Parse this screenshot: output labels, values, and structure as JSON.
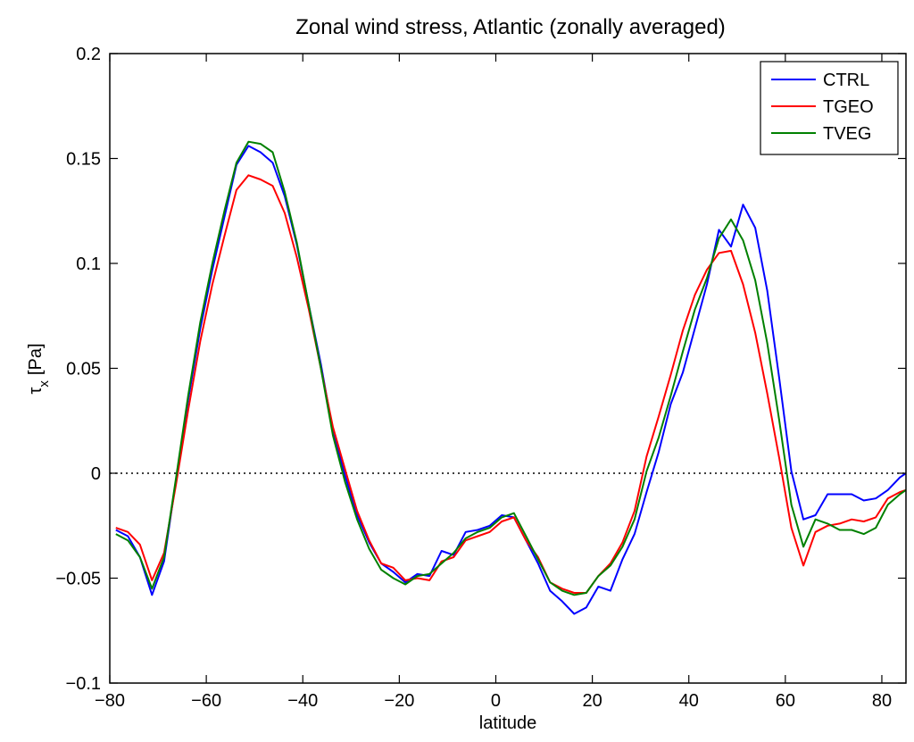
{
  "chart_data": {
    "type": "line",
    "title": "Zonal wind stress, Atlantic (zonally averaged)",
    "xlabel": "latitude",
    "ylabel_main": "τ",
    "ylabel_sub": "x",
    "ylabel_unit": "[Pa]",
    "xlim": [
      -80,
      85
    ],
    "ylim": [
      -0.1,
      0.2
    ],
    "x_ticks": [
      -80,
      -60,
      -40,
      -20,
      0,
      20,
      40,
      60,
      80
    ],
    "x_tick_labels": [
      "−80",
      "−60",
      "−40",
      "−20",
      "0",
      "20",
      "40",
      "60",
      "80"
    ],
    "y_ticks": [
      -0.1,
      -0.05,
      0,
      0.05,
      0.1,
      0.15,
      0.2
    ],
    "y_tick_labels": [
      "−0.1",
      "−0.05",
      "0",
      "0.05",
      "0.1",
      "0.15",
      "0.2"
    ],
    "grid": false,
    "legend_position": "top-right",
    "zero_line": {
      "y": 0,
      "style": "dotted",
      "color": "#000000"
    },
    "series": [
      {
        "name": "CTRL",
        "color": "#0000ff",
        "points": [
          [
            -78.75,
            -0.027
          ],
          [
            -76.25,
            -0.03
          ],
          [
            -73.75,
            -0.04
          ],
          [
            -71.25,
            -0.058
          ],
          [
            -68.75,
            -0.042
          ],
          [
            -66.25,
            -0.003
          ],
          [
            -63.75,
            0.035
          ],
          [
            -61.25,
            0.069
          ],
          [
            -58.75,
            0.097
          ],
          [
            -56.25,
            0.122
          ],
          [
            -53.75,
            0.147
          ],
          [
            -51.25,
            0.156
          ],
          [
            -48.75,
            0.153
          ],
          [
            -46.25,
            0.148
          ],
          [
            -43.75,
            0.132
          ],
          [
            -41.25,
            0.109
          ],
          [
            -38.75,
            0.08
          ],
          [
            -36.25,
            0.052
          ],
          [
            -33.75,
            0.02
          ],
          [
            -31.25,
            -0.001
          ],
          [
            -28.75,
            -0.02
          ],
          [
            -26.25,
            -0.033
          ],
          [
            -23.75,
            -0.043
          ],
          [
            -21.25,
            -0.047
          ],
          [
            -18.75,
            -0.052
          ],
          [
            -16.25,
            -0.048
          ],
          [
            -13.75,
            -0.049
          ],
          [
            -11.25,
            -0.037
          ],
          [
            -8.75,
            -0.039
          ],
          [
            -6.25,
            -0.028
          ],
          [
            -3.75,
            -0.027
          ],
          [
            -1.25,
            -0.025
          ],
          [
            1.25,
            -0.02
          ],
          [
            3.75,
            -0.021
          ],
          [
            6.25,
            -0.032
          ],
          [
            8.75,
            -0.043
          ],
          [
            11.25,
            -0.056
          ],
          [
            13.75,
            -0.061
          ],
          [
            16.25,
            -0.067
          ],
          [
            18.75,
            -0.064
          ],
          [
            21.25,
            -0.054
          ],
          [
            23.75,
            -0.056
          ],
          [
            26.25,
            -0.041
          ],
          [
            28.75,
            -0.029
          ],
          [
            31.25,
            -0.009
          ],
          [
            33.75,
            0.01
          ],
          [
            36.25,
            0.033
          ],
          [
            38.75,
            0.048
          ],
          [
            41.25,
            0.069
          ],
          [
            43.75,
            0.09
          ],
          [
            46.25,
            0.116
          ],
          [
            48.75,
            0.108
          ],
          [
            51.25,
            0.128
          ],
          [
            53.75,
            0.117
          ],
          [
            56.25,
            0.087
          ],
          [
            58.75,
            0.045
          ],
          [
            61.25,
            0.001
          ],
          [
            63.75,
            -0.022
          ],
          [
            66.25,
            -0.02
          ],
          [
            68.75,
            -0.01
          ],
          [
            71.25,
            -0.01
          ],
          [
            73.75,
            -0.01
          ],
          [
            76.25,
            -0.013
          ],
          [
            78.75,
            -0.012
          ],
          [
            81.25,
            -0.008
          ],
          [
            83.75,
            -0.002
          ],
          [
            85.0,
            0.0
          ]
        ]
      },
      {
        "name": "TGEO",
        "color": "#ff0000",
        "points": [
          [
            -78.75,
            -0.026
          ],
          [
            -76.25,
            -0.028
          ],
          [
            -73.75,
            -0.034
          ],
          [
            -71.25,
            -0.051
          ],
          [
            -68.75,
            -0.038
          ],
          [
            -66.25,
            -0.005
          ],
          [
            -63.75,
            0.03
          ],
          [
            -61.25,
            0.063
          ],
          [
            -58.75,
            0.09
          ],
          [
            -56.25,
            0.113
          ],
          [
            -53.75,
            0.135
          ],
          [
            -51.25,
            0.142
          ],
          [
            -48.75,
            0.14
          ],
          [
            -46.25,
            0.137
          ],
          [
            -43.75,
            0.124
          ],
          [
            -41.25,
            0.103
          ],
          [
            -38.75,
            0.078
          ],
          [
            -36.25,
            0.05
          ],
          [
            -33.75,
            0.022
          ],
          [
            -31.25,
            0.002
          ],
          [
            -28.75,
            -0.018
          ],
          [
            -26.25,
            -0.032
          ],
          [
            -23.75,
            -0.043
          ],
          [
            -21.25,
            -0.045
          ],
          [
            -18.75,
            -0.051
          ],
          [
            -16.25,
            -0.05
          ],
          [
            -13.75,
            -0.051
          ],
          [
            -11.25,
            -0.042
          ],
          [
            -8.75,
            -0.04
          ],
          [
            -6.25,
            -0.032
          ],
          [
            -3.75,
            -0.03
          ],
          [
            -1.25,
            -0.028
          ],
          [
            1.25,
            -0.023
          ],
          [
            3.75,
            -0.021
          ],
          [
            6.25,
            -0.032
          ],
          [
            8.75,
            -0.04
          ],
          [
            11.25,
            -0.052
          ],
          [
            13.75,
            -0.055
          ],
          [
            16.25,
            -0.057
          ],
          [
            18.75,
            -0.057
          ],
          [
            21.25,
            -0.049
          ],
          [
            23.75,
            -0.043
          ],
          [
            26.25,
            -0.033
          ],
          [
            28.75,
            -0.018
          ],
          [
            31.25,
            0.008
          ],
          [
            33.75,
            0.027
          ],
          [
            36.25,
            0.047
          ],
          [
            38.75,
            0.068
          ],
          [
            41.25,
            0.085
          ],
          [
            43.75,
            0.097
          ],
          [
            46.25,
            0.105
          ],
          [
            48.75,
            0.106
          ],
          [
            51.25,
            0.09
          ],
          [
            53.75,
            0.067
          ],
          [
            56.25,
            0.038
          ],
          [
            58.75,
            0.007
          ],
          [
            61.25,
            -0.026
          ],
          [
            63.75,
            -0.044
          ],
          [
            66.25,
            -0.028
          ],
          [
            68.75,
            -0.025
          ],
          [
            71.25,
            -0.024
          ],
          [
            73.75,
            -0.022
          ],
          [
            76.25,
            -0.023
          ],
          [
            78.75,
            -0.021
          ],
          [
            81.25,
            -0.012
          ],
          [
            83.75,
            -0.009
          ],
          [
            85.0,
            -0.008
          ]
        ]
      },
      {
        "name": "TVEG",
        "color": "#008000",
        "points": [
          [
            -78.75,
            -0.029
          ],
          [
            -76.25,
            -0.032
          ],
          [
            -73.75,
            -0.04
          ],
          [
            -71.25,
            -0.055
          ],
          [
            -68.75,
            -0.04
          ],
          [
            -66.25,
            -0.002
          ],
          [
            -63.75,
            0.037
          ],
          [
            -61.25,
            0.072
          ],
          [
            -58.75,
            0.1
          ],
          [
            -56.25,
            0.125
          ],
          [
            -53.75,
            0.148
          ],
          [
            -51.25,
            0.158
          ],
          [
            -48.75,
            0.157
          ],
          [
            -46.25,
            0.153
          ],
          [
            -43.75,
            0.134
          ],
          [
            -41.25,
            0.11
          ],
          [
            -38.75,
            0.08
          ],
          [
            -36.25,
            0.05
          ],
          [
            -33.75,
            0.018
          ],
          [
            -31.25,
            -0.004
          ],
          [
            -28.75,
            -0.022
          ],
          [
            -26.25,
            -0.036
          ],
          [
            -23.75,
            -0.046
          ],
          [
            -21.25,
            -0.05
          ],
          [
            -18.75,
            -0.053
          ],
          [
            -16.25,
            -0.049
          ],
          [
            -13.75,
            -0.048
          ],
          [
            -11.25,
            -0.043
          ],
          [
            -8.75,
            -0.038
          ],
          [
            -6.25,
            -0.031
          ],
          [
            -3.75,
            -0.028
          ],
          [
            -1.25,
            -0.026
          ],
          [
            1.25,
            -0.021
          ],
          [
            3.75,
            -0.019
          ],
          [
            6.25,
            -0.03
          ],
          [
            8.75,
            -0.041
          ],
          [
            11.25,
            -0.052
          ],
          [
            13.75,
            -0.056
          ],
          [
            16.25,
            -0.058
          ],
          [
            18.75,
            -0.057
          ],
          [
            21.25,
            -0.049
          ],
          [
            23.75,
            -0.044
          ],
          [
            26.25,
            -0.035
          ],
          [
            28.75,
            -0.022
          ],
          [
            31.25,
            0.001
          ],
          [
            33.75,
            0.017
          ],
          [
            36.25,
            0.037
          ],
          [
            38.75,
            0.058
          ],
          [
            41.25,
            0.078
          ],
          [
            43.75,
            0.093
          ],
          [
            46.25,
            0.112
          ],
          [
            48.75,
            0.121
          ],
          [
            51.25,
            0.111
          ],
          [
            53.75,
            0.092
          ],
          [
            56.25,
            0.062
          ],
          [
            58.75,
            0.025
          ],
          [
            61.25,
            -0.015
          ],
          [
            63.75,
            -0.035
          ],
          [
            66.25,
            -0.022
          ],
          [
            68.75,
            -0.024
          ],
          [
            71.25,
            -0.027
          ],
          [
            73.75,
            -0.027
          ],
          [
            76.25,
            -0.029
          ],
          [
            78.75,
            -0.026
          ],
          [
            81.25,
            -0.015
          ],
          [
            83.75,
            -0.01
          ],
          [
            85.0,
            -0.008
          ]
        ]
      }
    ]
  }
}
